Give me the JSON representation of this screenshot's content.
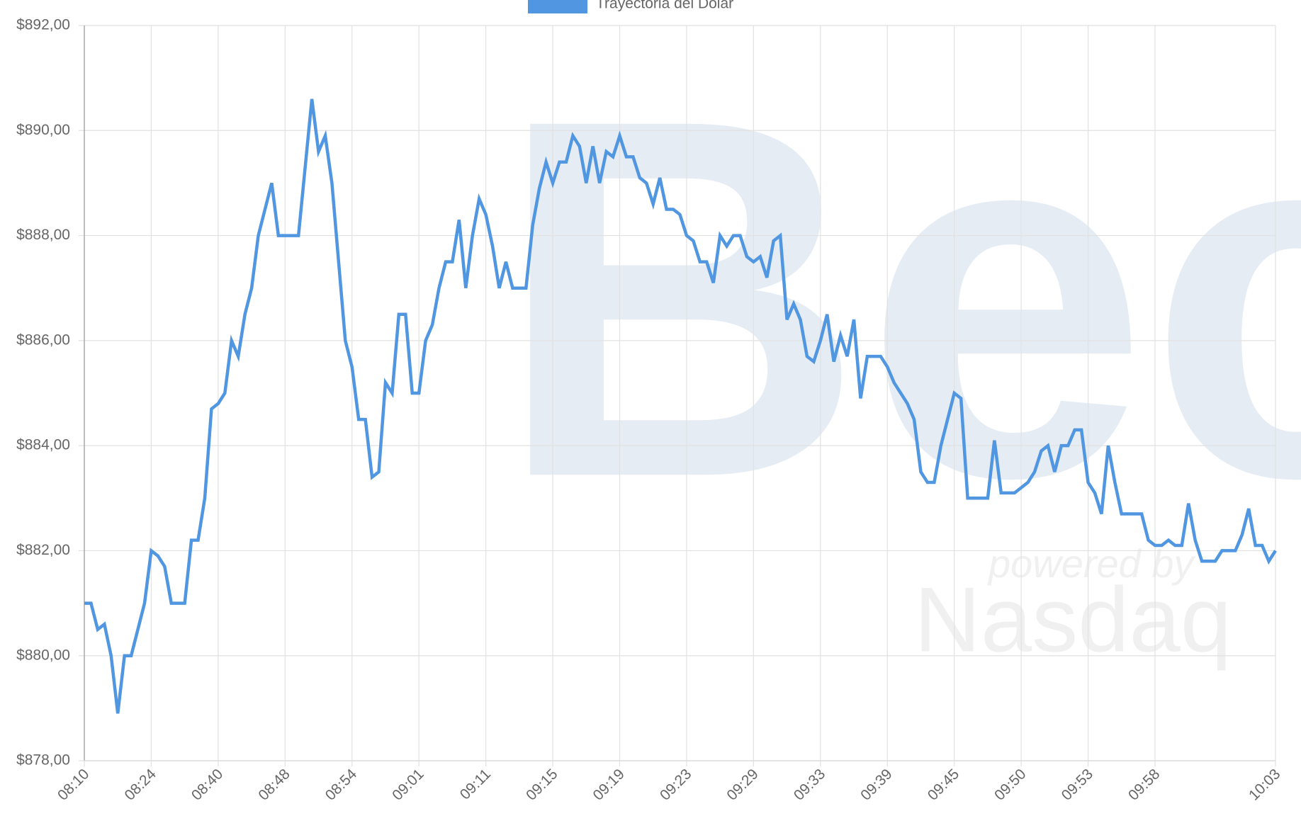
{
  "chart_data": {
    "type": "line",
    "legend_position": "top",
    "grid": true,
    "watermark": {
      "brand": "Bec",
      "tagline": "powered by",
      "partner": "Nasdaq"
    },
    "categories": [
      "08:10",
      null,
      null,
      null,
      null,
      null,
      null,
      null,
      null,
      null,
      "08:24",
      null,
      null,
      null,
      null,
      null,
      null,
      null,
      null,
      null,
      "08:40",
      null,
      null,
      null,
      null,
      null,
      null,
      null,
      null,
      null,
      "08:48",
      null,
      null,
      null,
      null,
      null,
      null,
      null,
      null,
      null,
      "08:54",
      null,
      null,
      null,
      null,
      null,
      null,
      null,
      null,
      null,
      "09:01",
      null,
      null,
      null,
      null,
      null,
      null,
      null,
      null,
      null,
      "09:11",
      null,
      null,
      null,
      null,
      null,
      null,
      null,
      null,
      null,
      "09:15",
      null,
      null,
      null,
      null,
      null,
      null,
      null,
      null,
      null,
      "09:19",
      null,
      null,
      null,
      null,
      null,
      null,
      null,
      null,
      null,
      "09:23",
      null,
      null,
      null,
      null,
      null,
      null,
      null,
      null,
      null,
      "09:29",
      null,
      null,
      null,
      null,
      null,
      null,
      null,
      null,
      null,
      "09:33",
      null,
      null,
      null,
      null,
      null,
      null,
      null,
      null,
      null,
      "09:39",
      null,
      null,
      null,
      null,
      null,
      null,
      null,
      null,
      null,
      "09:45",
      null,
      null,
      null,
      null,
      null,
      null,
      null,
      null,
      null,
      "09:50",
      null,
      null,
      null,
      null,
      null,
      null,
      null,
      null,
      null,
      "09:53",
      null,
      null,
      null,
      null,
      null,
      null,
      null,
      null,
      null,
      "09:58",
      null,
      null,
      null,
      null,
      null,
      null,
      null,
      null,
      null,
      null,
      null,
      null,
      null,
      null,
      null,
      null,
      null,
      "10:03"
    ],
    "series": [
      {
        "name": "Trayectoria del Dólar",
        "color": "#5096e0",
        "values": [
          881,
          881,
          880.5,
          880.6,
          880,
          878.9,
          880,
          880,
          880.5,
          881,
          882,
          881.9,
          881.7,
          881,
          881,
          881,
          882.2,
          882.2,
          883,
          884.7,
          884.8,
          885,
          886,
          885.7,
          886.5,
          887,
          888,
          888.5,
          889,
          888,
          888,
          888,
          888,
          889.3,
          890.6,
          889.6,
          889.9,
          889,
          887.5,
          886,
          885.5,
          884.5,
          884.5,
          883.4,
          883.5,
          885.2,
          885,
          886.5,
          886.5,
          885,
          885,
          886,
          886.3,
          887,
          887.5,
          887.5,
          888.3,
          887,
          888,
          888.7,
          888.4,
          887.8,
          887,
          887.5,
          887,
          887,
          887,
          888.2,
          888.9,
          889.4,
          889,
          889.4,
          889.4,
          889.9,
          889.7,
          889,
          889.7,
          889,
          889.6,
          889.5,
          889.9,
          889.5,
          889.5,
          889.1,
          889,
          888.6,
          889.1,
          888.5,
          888.5,
          888.4,
          888,
          887.9,
          887.5,
          887.5,
          887.1,
          888,
          887.8,
          888,
          888,
          887.6,
          887.5,
          887.6,
          887.2,
          887.9,
          888,
          886.4,
          886.7,
          886.4,
          885.7,
          885.6,
          886,
          886.5,
          885.6,
          886.1,
          885.7,
          886.4,
          884.9,
          885.7,
          885.7,
          885.7,
          885.5,
          885.2,
          885,
          884.8,
          884.5,
          883.5,
          883.3,
          883.3,
          884,
          884.5,
          885,
          884.9,
          883,
          883,
          883,
          883,
          884.1,
          883.1,
          883.1,
          883.1,
          883.2,
          883.3,
          883.5,
          883.9,
          884,
          883.5,
          884,
          884,
          884.3,
          884.3,
          883.3,
          883.1,
          882.7,
          884,
          883.3,
          882.7,
          882.7,
          882.7,
          882.7,
          882.2,
          882.1,
          882.1,
          882.2,
          882.1,
          882.1,
          882.9,
          882.2,
          881.8,
          881.8,
          881.8,
          882,
          882,
          882,
          882.3,
          882.8,
          882.1,
          882.1,
          881.8,
          882
        ]
      }
    ],
    "ylim": [
      878,
      892
    ],
    "yticks": [
      {
        "value": 878,
        "label": "$878,00"
      },
      {
        "value": 880,
        "label": "$880,00"
      },
      {
        "value": 882,
        "label": "$882,00"
      },
      {
        "value": 884,
        "label": "$884,00"
      },
      {
        "value": 886,
        "label": "$886,00"
      },
      {
        "value": 888,
        "label": "$888,00"
      },
      {
        "value": 890,
        "label": "$890,00"
      },
      {
        "value": 892,
        "label": "$892,00"
      }
    ]
  }
}
